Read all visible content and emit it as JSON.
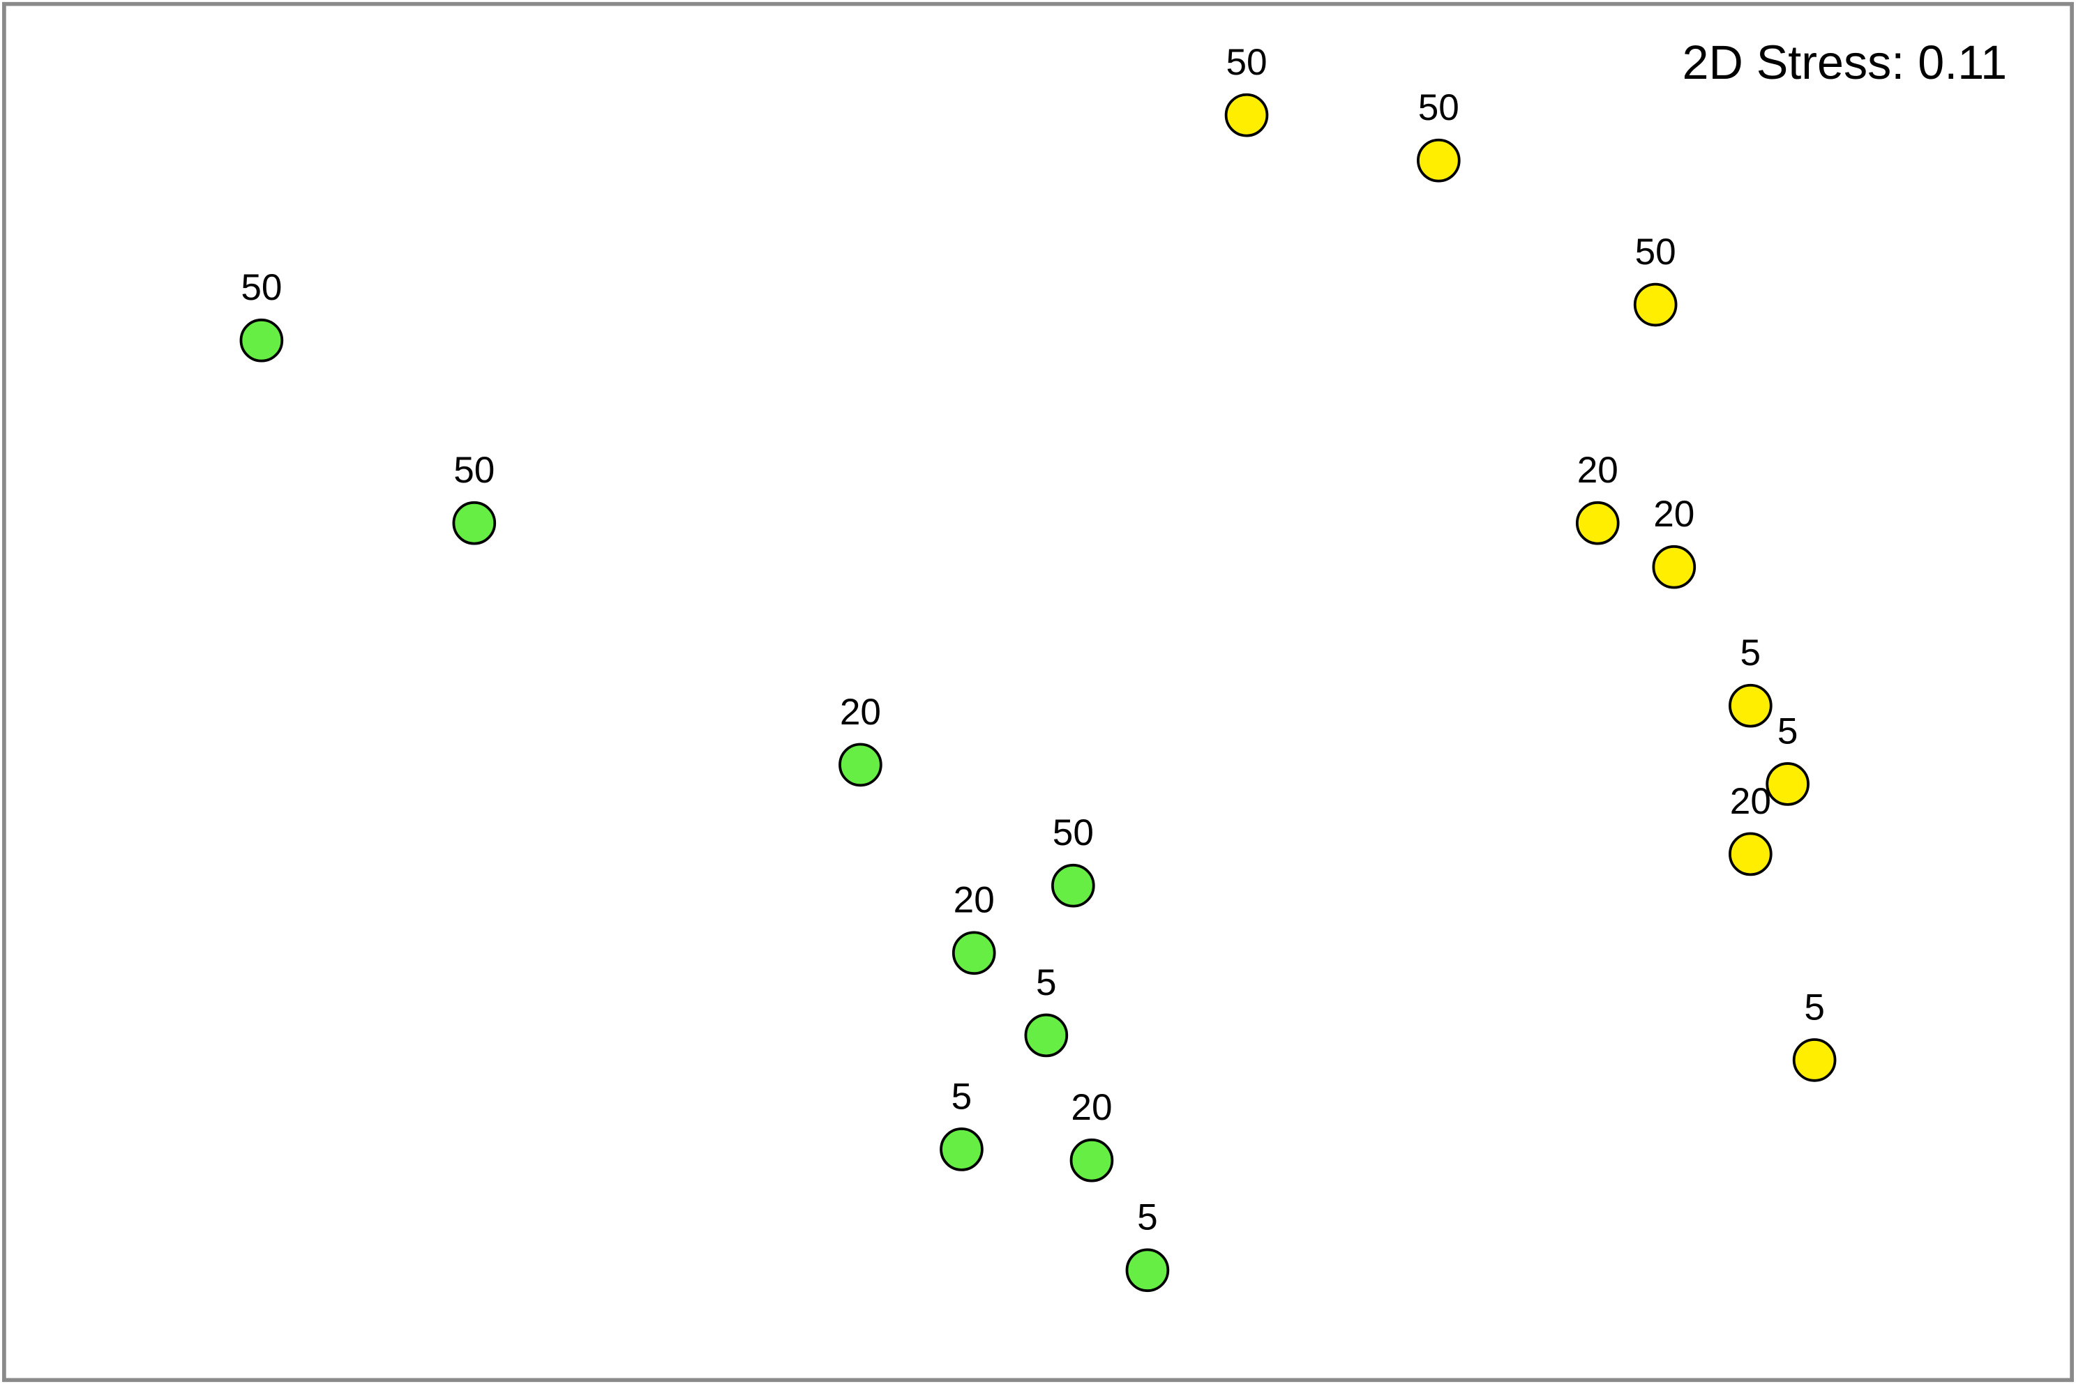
{
  "chart_data": {
    "type": "scatter",
    "annotation": "2D Stress: 0.11",
    "xlim": [
      0,
      100
    ],
    "ylim": [
      0,
      100
    ],
    "series": [
      {
        "color": "#66ee44",
        "x": [
          12.4,
          22.7,
          41.4,
          51.7,
          46.9,
          50.4,
          46.3,
          52.6,
          55.3
        ],
        "values": [
          75.6,
          62.3,
          44.7,
          35.9,
          31.0,
          25.0,
          16.7,
          15.9,
          7.9
        ],
        "labels": [
          "50",
          "50",
          "20",
          "50",
          "20",
          "5",
          "5",
          "20",
          "5"
        ]
      },
      {
        "color": "#ffee00",
        "x": [
          60.1,
          69.4,
          79.9,
          77.1,
          80.8,
          84.5,
          86.3,
          84.5,
          87.6
        ],
        "values": [
          92.0,
          88.7,
          78.2,
          62.3,
          59.1,
          49.0,
          43.3,
          38.2,
          23.2
        ],
        "labels": [
          "50",
          "50",
          "50",
          "20",
          "20",
          "5",
          "5",
          "20",
          "5"
        ]
      }
    ]
  }
}
